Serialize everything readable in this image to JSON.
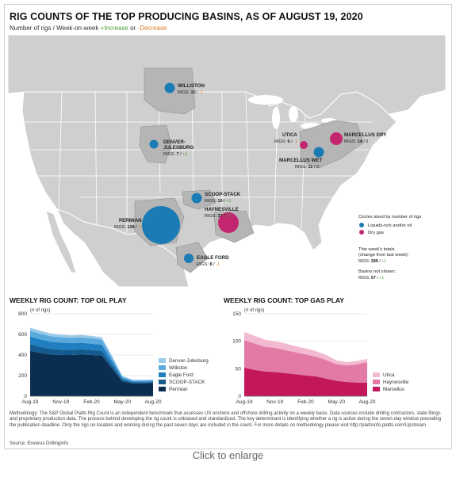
{
  "title": "RIG COUNTS OF THE TOP PRODUCING BASINS, AS OF AUGUST 19, 2020",
  "subtitle": {
    "prefix": "Number of rigs / Week-on-week",
    "increase": "+Increase",
    "or": "or",
    "decrease": "-Decrease"
  },
  "colors": {
    "liquids": "#1a7bb5",
    "dry_gas": "#c2266e",
    "increase": "#4a9a3a",
    "decrease": "#e07b2a",
    "basin_fill": "#b9b9b9",
    "land": "#cfcfcf",
    "water": "#ffffff"
  },
  "basins": [
    {
      "name": "WILLISTON",
      "rigs_label": "RIGS:",
      "rigs": "10",
      "change": "-1",
      "type": "liquids"
    },
    {
      "name": "DENVER-\nJULESBURG",
      "rigs_label": "RIGS:",
      "rigs": "7",
      "change": "+1",
      "type": "liquids"
    },
    {
      "name": "SCOOP-STACK",
      "rigs_label": "RIGS:",
      "rigs": "10",
      "change": "+1",
      "type": "liquids"
    },
    {
      "name": "HAYNESVILLE",
      "rigs_label": "RIGS:",
      "rigs": "37",
      "change": "+2",
      "type": "dry_gas"
    },
    {
      "name": "PERMIAN",
      "rigs_label": "RIGS:",
      "rigs": "128",
      "change": "-1",
      "type": "liquids"
    },
    {
      "name": "EAGLE FORD",
      "rigs_label": "RIGS:",
      "rigs": "8",
      "change": "-1",
      "type": "liquids"
    },
    {
      "name": "UTICA",
      "rigs_label": "RIGS:",
      "rigs": "6",
      "change": "-1",
      "type": "dry_gas"
    },
    {
      "name": "MARCELLUS WET",
      "rigs_label": "RIGS:",
      "rigs": "11",
      "change": "0",
      "type": "liquids"
    },
    {
      "name": "MARCELLUS DRY",
      "rigs_label": "RIGS:",
      "rigs": "14",
      "change": "0",
      "type": "dry_gas"
    }
  ],
  "legend": {
    "size_note": "Circles sized by number of rigs",
    "liquids": "Liquids-rich and/or oil",
    "dry_gas": "Dry gas",
    "totals_line1": "This week's totals",
    "totals_line2": "(change from last week):",
    "totals_rigs_label": "RIGS:",
    "totals_rigs": "289",
    "totals_change": "+1",
    "not_shown_line": "Basins not shown:",
    "not_shown_rigs_label": "RIGS:",
    "not_shown_rigs": "57",
    "not_shown_change": "+1"
  },
  "chart_data": [
    {
      "type": "area",
      "title": "WEEKLY RIG COUNT: TOP OIL PLAY",
      "ylabel": "(# of rigs)",
      "ylim": [
        0,
        800
      ],
      "yticks": [
        0,
        200,
        400,
        600,
        800
      ],
      "x": [
        "Aug-19",
        "Sep-19",
        "Oct-19",
        "Nov-19",
        "Dec-19",
        "Jan-20",
        "Feb-20",
        "Mar-20",
        "Apr-20",
        "May-20",
        "Jun-20",
        "Jul-20",
        "Aug-20"
      ],
      "xticks": [
        "Aug-19",
        "Nov-19",
        "Feb-20",
        "May-20",
        "Aug-20"
      ],
      "stacked": true,
      "series": [
        {
          "name": "Permian",
          "color": "#0a2e52",
          "values": [
            440,
            420,
            405,
            400,
            400,
            405,
            400,
            395,
            270,
            145,
            125,
            125,
            128
          ]
        },
        {
          "name": "SCOOP-STACK",
          "color": "#145b8f",
          "values": [
            65,
            60,
            55,
            52,
            50,
            50,
            48,
            45,
            30,
            15,
            10,
            10,
            10
          ]
        },
        {
          "name": "Eagle Ford",
          "color": "#1f7fc0",
          "values": [
            75,
            72,
            70,
            68,
            65,
            64,
            62,
            60,
            40,
            15,
            8,
            8,
            8
          ]
        },
        {
          "name": "Williston",
          "color": "#5aa9dc",
          "values": [
            55,
            55,
            53,
            53,
            52,
            52,
            52,
            50,
            35,
            15,
            12,
            11,
            10
          ]
        },
        {
          "name": "Denver-Julesburg",
          "color": "#9bcbea",
          "values": [
            30,
            28,
            27,
            25,
            24,
            24,
            23,
            22,
            15,
            6,
            5,
            6,
            7
          ]
        }
      ],
      "legend_position": "right"
    },
    {
      "type": "area",
      "title": "WEEKLY RIG COUNT: TOP GAS PLAY",
      "ylabel": "(# of rigs)",
      "ylim": [
        0,
        150
      ],
      "yticks": [
        0,
        50,
        100,
        150
      ],
      "x": [
        "Aug-19",
        "Sep-19",
        "Oct-19",
        "Nov-19",
        "Dec-19",
        "Jan-20",
        "Feb-20",
        "Mar-20",
        "Apr-20",
        "May-20",
        "Jun-20",
        "Jul-20",
        "Aug-20"
      ],
      "xticks": [
        "Aug-19",
        "Nov-19",
        "Feb-20",
        "May-20",
        "Aug-20"
      ],
      "stacked": true,
      "series": [
        {
          "name": "Marcellus",
          "color": "#c2185b",
          "values": [
            52,
            48,
            45,
            44,
            42,
            40,
            38,
            36,
            32,
            28,
            26,
            25,
            25
          ]
        },
        {
          "name": "Haynesville",
          "color": "#e37aa6",
          "values": [
            50,
            48,
            45,
            44,
            42,
            40,
            38,
            36,
            34,
            30,
            30,
            33,
            37
          ]
        },
        {
          "name": "Utica",
          "color": "#f2b9d0",
          "values": [
            15,
            14,
            13,
            12,
            12,
            11,
            11,
            10,
            9,
            7,
            6,
            6,
            6
          ]
        }
      ],
      "legend_position": "right"
    }
  ],
  "methodology": "Methodology: The S&P Global Platts Rig Count is an independent benchmark that assesses US onshore and offshore drilling activity on a weekly basis. Data sources include drilling contractors, state filings and proprietary production data. The process behind developing the rig count is unbiased and standardized. The key determinant is identifying whether a rig is active during the seven-day window preceding the publication deadline. Only the rigs on location and working during the past seven days are included in the count. For more details on methodology please visit http://plattsinfo.platts.com/Upstream.",
  "source": "Source: Enverus Drillinginfo",
  "enlarge": "Click to enlarge"
}
